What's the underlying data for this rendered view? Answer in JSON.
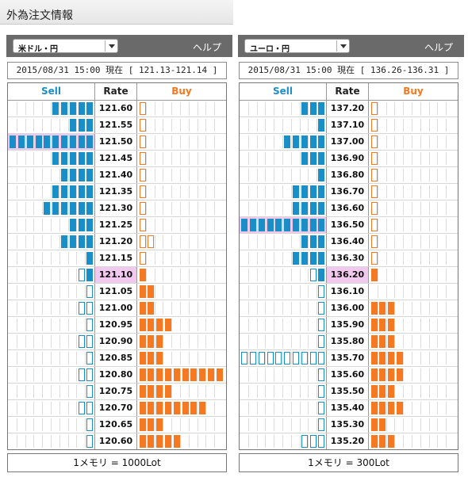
{
  "page_title": "外為注文情報",
  "colors": {
    "sell": "#1a8fc7",
    "buy": "#f47920",
    "highlight": "#f2c9ee",
    "bar": "#6a6a6a"
  },
  "panels": [
    {
      "pair": "米ドル・円",
      "help": "ヘルプ",
      "status": "2015/08/31  15:00 現在 [ 121.13-121.14 ]",
      "headers": {
        "sell": "Sell",
        "rate": "Rate",
        "buy": "Buy"
      },
      "current_rate": "121.10",
      "highlight_rate": "121.50",
      "footer": "1メモリ = 1000Lot",
      "rows": [
        {
          "rate": "121.60",
          "sell": 5,
          "sell_type": "fill",
          "buy": 1,
          "buy_type": "outline"
        },
        {
          "rate": "121.55",
          "sell": 3,
          "sell_type": "fill",
          "buy": 1,
          "buy_type": "outline"
        },
        {
          "rate": "121.50",
          "sell": 10,
          "sell_type": "fill",
          "buy": 1,
          "buy_type": "outline"
        },
        {
          "rate": "121.45",
          "sell": 5,
          "sell_type": "fill",
          "buy": 1,
          "buy_type": "outline"
        },
        {
          "rate": "121.40",
          "sell": 4,
          "sell_type": "fill",
          "buy": 1,
          "buy_type": "outline"
        },
        {
          "rate": "121.35",
          "sell": 5,
          "sell_type": "fill",
          "buy": 1,
          "buy_type": "outline"
        },
        {
          "rate": "121.30",
          "sell": 6,
          "sell_type": "fill",
          "buy": 1,
          "buy_type": "outline"
        },
        {
          "rate": "121.25",
          "sell": 3,
          "sell_type": "fill",
          "buy": 1,
          "buy_type": "outline"
        },
        {
          "rate": "121.20",
          "sell": 4,
          "sell_type": "fill",
          "buy": 2,
          "buy_type": "outline"
        },
        {
          "rate": "121.15",
          "sell": 1,
          "sell_type": "fill",
          "buy": 1,
          "buy_type": "outline"
        },
        {
          "rate": "121.10",
          "sell": 2,
          "sell_type": "mixed",
          "buy": 1,
          "buy_type": "fill"
        },
        {
          "rate": "121.05",
          "sell": 1,
          "sell_type": "outline",
          "buy": 2,
          "buy_type": "fill"
        },
        {
          "rate": "121.00",
          "sell": 2,
          "sell_type": "outline",
          "buy": 2,
          "buy_type": "fill"
        },
        {
          "rate": "120.95",
          "sell": 1,
          "sell_type": "outline",
          "buy": 4,
          "buy_type": "fill"
        },
        {
          "rate": "120.90",
          "sell": 2,
          "sell_type": "outline",
          "buy": 3,
          "buy_type": "fill"
        },
        {
          "rate": "120.85",
          "sell": 1,
          "sell_type": "outline",
          "buy": 3,
          "buy_type": "fill"
        },
        {
          "rate": "120.80",
          "sell": 2,
          "sell_type": "outline",
          "buy": 10,
          "buy_type": "fill"
        },
        {
          "rate": "120.75",
          "sell": 1,
          "sell_type": "outline",
          "buy": 4,
          "buy_type": "fill"
        },
        {
          "rate": "120.70",
          "sell": 2,
          "sell_type": "outline",
          "buy": 8,
          "buy_type": "fill"
        },
        {
          "rate": "120.65",
          "sell": 1,
          "sell_type": "outline",
          "buy": 3,
          "buy_type": "fill"
        },
        {
          "rate": "120.60",
          "sell": 1,
          "sell_type": "outline",
          "buy": 5,
          "buy_type": "fill"
        }
      ]
    },
    {
      "pair": "ユーロ・円",
      "help": "ヘルプ",
      "status": "2015/08/31  15:00 現在 [ 136.26-136.31 ]",
      "headers": {
        "sell": "Sell",
        "rate": "Rate",
        "buy": "Buy"
      },
      "current_rate": "136.20",
      "highlight_rate": "136.50",
      "footer": "1メモリ = 300Lot",
      "rows": [
        {
          "rate": "137.20",
          "sell": 3,
          "sell_type": "fill",
          "buy": 1,
          "buy_type": "outline"
        },
        {
          "rate": "137.10",
          "sell": 1,
          "sell_type": "fill",
          "buy": 1,
          "buy_type": "outline"
        },
        {
          "rate": "137.00",
          "sell": 5,
          "sell_type": "fill",
          "buy": 1,
          "buy_type": "outline"
        },
        {
          "rate": "136.90",
          "sell": 3,
          "sell_type": "fill",
          "buy": 1,
          "buy_type": "outline"
        },
        {
          "rate": "136.80",
          "sell": 1,
          "sell_type": "fill",
          "buy": 1,
          "buy_type": "outline"
        },
        {
          "rate": "136.70",
          "sell": 4,
          "sell_type": "fill",
          "buy": 1,
          "buy_type": "outline"
        },
        {
          "rate": "136.60",
          "sell": 4,
          "sell_type": "fill",
          "buy": 1,
          "buy_type": "outline"
        },
        {
          "rate": "136.50",
          "sell": 10,
          "sell_type": "fill",
          "buy": 1,
          "buy_type": "outline"
        },
        {
          "rate": "136.40",
          "sell": 3,
          "sell_type": "fill",
          "buy": 1,
          "buy_type": "outline"
        },
        {
          "rate": "136.30",
          "sell": 4,
          "sell_type": "fill",
          "buy": 1,
          "buy_type": "outline"
        },
        {
          "rate": "136.20",
          "sell": 2,
          "sell_type": "mixed",
          "buy": 1,
          "buy_type": "fill"
        },
        {
          "rate": "136.10",
          "sell": 1,
          "sell_type": "outline",
          "buy": 0,
          "buy_type": "fill"
        },
        {
          "rate": "136.00",
          "sell": 1,
          "sell_type": "outline",
          "buy": 3,
          "buy_type": "fill"
        },
        {
          "rate": "135.90",
          "sell": 1,
          "sell_type": "outline",
          "buy": 3,
          "buy_type": "fill"
        },
        {
          "rate": "135.80",
          "sell": 1,
          "sell_type": "outline",
          "buy": 3,
          "buy_type": "fill"
        },
        {
          "rate": "135.70",
          "sell": 10,
          "sell_type": "outline",
          "buy": 4,
          "buy_type": "fill"
        },
        {
          "rate": "135.60",
          "sell": 1,
          "sell_type": "outline",
          "buy": 4,
          "buy_type": "fill"
        },
        {
          "rate": "135.50",
          "sell": 1,
          "sell_type": "outline",
          "buy": 3,
          "buy_type": "fill"
        },
        {
          "rate": "135.40",
          "sell": 1,
          "sell_type": "outline",
          "buy": 4,
          "buy_type": "fill"
        },
        {
          "rate": "135.30",
          "sell": 1,
          "sell_type": "outline",
          "buy": 2,
          "buy_type": "fill"
        },
        {
          "rate": "135.20",
          "sell": 3,
          "sell_type": "outline",
          "buy": 3,
          "buy_type": "fill"
        }
      ]
    }
  ]
}
